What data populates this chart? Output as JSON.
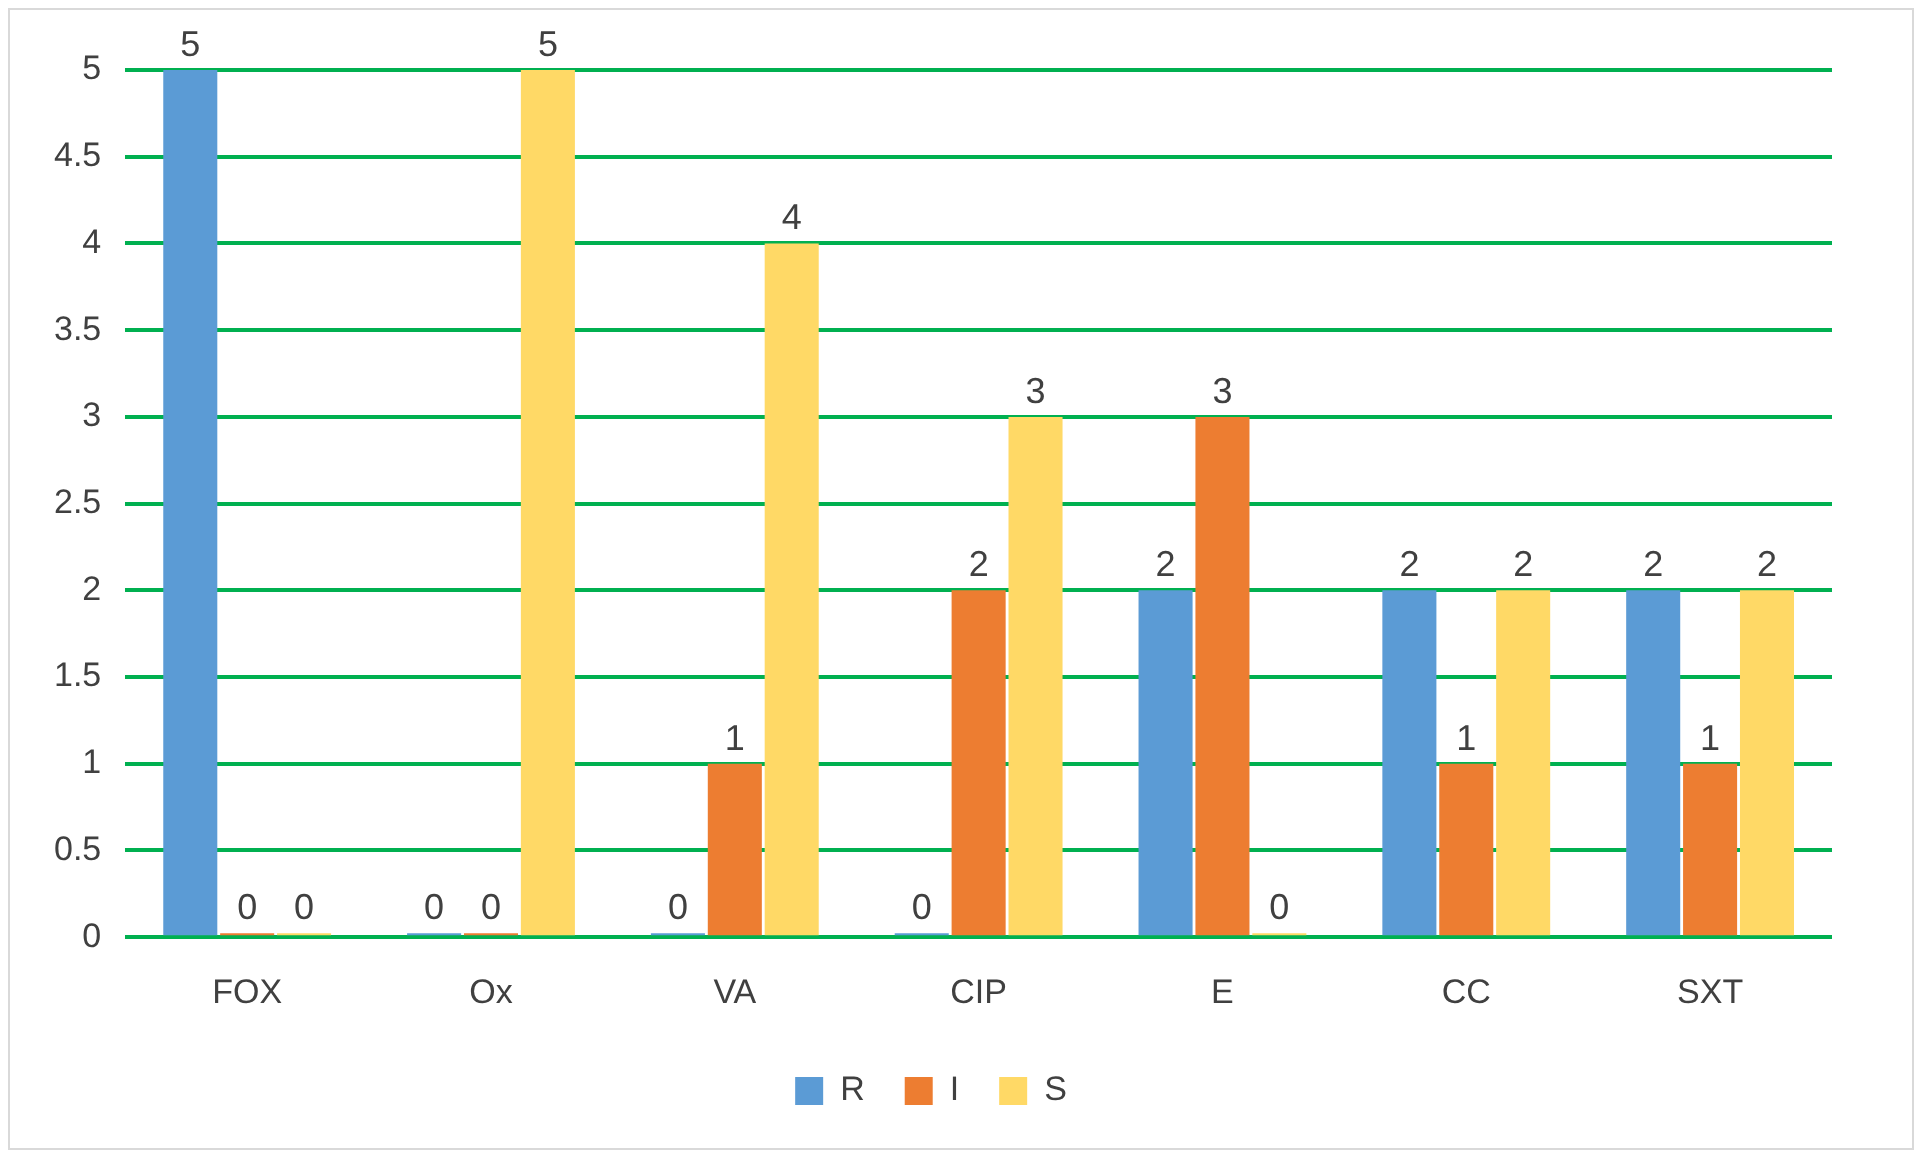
{
  "chart_data": {
    "type": "bar",
    "categories": [
      "FOX",
      "Ox",
      "VA",
      "CIP",
      "E",
      "CC",
      "SXT"
    ],
    "series": [
      {
        "name": "R",
        "color": "#5b9bd5",
        "values": [
          5,
          0,
          0,
          0,
          2,
          2,
          2
        ]
      },
      {
        "name": "I",
        "color": "#ed7d31",
        "values": [
          0,
          0,
          1,
          2,
          3,
          1,
          1
        ]
      },
      {
        "name": "S",
        "color": "#ffd966",
        "values": [
          0,
          5,
          4,
          3,
          0,
          2,
          2
        ]
      }
    ],
    "ylim": [
      0,
      5
    ],
    "yticks": [
      0,
      0.5,
      1,
      1.5,
      2,
      2.5,
      3,
      3.5,
      4,
      4.5,
      5
    ],
    "grid": "y",
    "legend": "bottom",
    "data_labels": true
  }
}
